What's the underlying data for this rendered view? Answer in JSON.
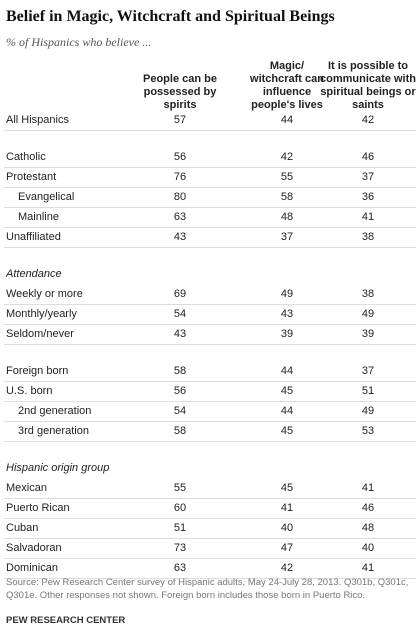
{
  "title": "Belief in Magic, Witchcraft and Spiritual Beings",
  "subtitle": "% of Hispanics who believe ...",
  "table": {
    "columns": [
      "People can be possessed by spirits",
      "Magic/ witchcraft can influence people's lives",
      "It is possible to communicate with spiritual beings or saints"
    ],
    "sections": [
      {
        "rows": [
          [
            "All Hispanics",
            57,
            44,
            42
          ]
        ]
      },
      {
        "rows": [
          [
            "Catholic",
            56,
            42,
            46
          ],
          [
            "Protestant",
            76,
            55,
            37
          ],
          [
            "Evangelical",
            80,
            58,
            36
          ],
          [
            "Mainline",
            63,
            48,
            41
          ],
          [
            "Unaffiliated",
            43,
            37,
            38
          ]
        ]
      },
      {
        "heading": "Attendance",
        "rows": [
          [
            "Weekly or more",
            69,
            49,
            38
          ],
          [
            "Monthly/yearly",
            54,
            43,
            49
          ],
          [
            "Seldom/never",
            43,
            39,
            39
          ]
        ]
      },
      {
        "rows": [
          [
            "Foreign born",
            58,
            44,
            37
          ],
          [
            "U.S. born",
            56,
            45,
            51
          ],
          [
            "2nd generation",
            54,
            44,
            49
          ],
          [
            "3rd generation",
            58,
            45,
            53
          ]
        ]
      },
      {
        "heading": "Hispanic origin group",
        "rows": [
          [
            "Mexican",
            55,
            45,
            41
          ],
          [
            "Puerto Rican",
            60,
            41,
            46
          ],
          [
            "Cuban",
            51,
            40,
            48
          ],
          [
            "Salvadoran",
            73,
            47,
            40
          ],
          [
            "Dominican",
            63,
            42,
            41
          ]
        ]
      }
    ]
  },
  "source": "Source: Pew Research Center survey of Hispanic adults, May 24-July 28, 2013. Q301b, Q301c, Q301e. Other responses not shown. Foreign born includes those born in Puerto Rico.",
  "credit": "PEW RESEARCH CENTER"
}
